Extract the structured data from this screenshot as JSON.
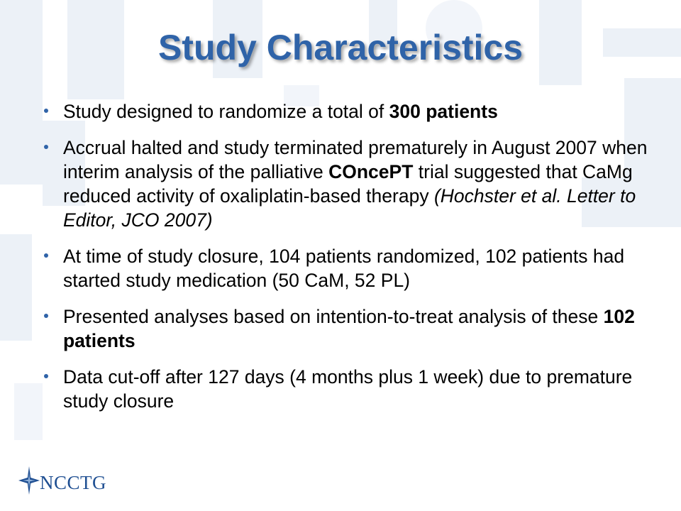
{
  "slide": {
    "title": "Study Characteristics",
    "bullets": [
      {
        "parts": [
          {
            "text": "Study designed to randomize a total of "
          },
          {
            "text": "300 patients",
            "style": "bold"
          }
        ]
      },
      {
        "parts": [
          {
            "text": "Accrual halted and study terminated prematurely in August 2007 when interim analysis of the palliative "
          },
          {
            "text": "COncePT",
            "style": "bold"
          },
          {
            "text": " trial suggested that CaMg reduced activity of oxaliplatin-based therapy "
          },
          {
            "text": "(Hochster et al. Letter to Editor, JCO 2007)",
            "style": "italic"
          }
        ]
      },
      {
        "parts": [
          {
            "text": "At time of study closure, 104 patients randomized, 102 patients had started study medication (50 CaM, 52 PL)"
          }
        ]
      },
      {
        "parts": [
          {
            "text": "Presented analyses based on intention-to-treat analysis of these "
          },
          {
            "text": "102 patients",
            "style": "bold"
          }
        ]
      },
      {
        "parts": [
          {
            "text": "Data cut-off after 127 days (4 months plus 1 week) due to premature study closure"
          }
        ]
      }
    ],
    "logo": {
      "text": "NCCTG",
      "icon": "star-icon"
    }
  },
  "colors": {
    "title": "#2f63a8",
    "bullet": "#2f63a8",
    "logo": "#1f4f92",
    "watermark": "#dde6f1"
  }
}
